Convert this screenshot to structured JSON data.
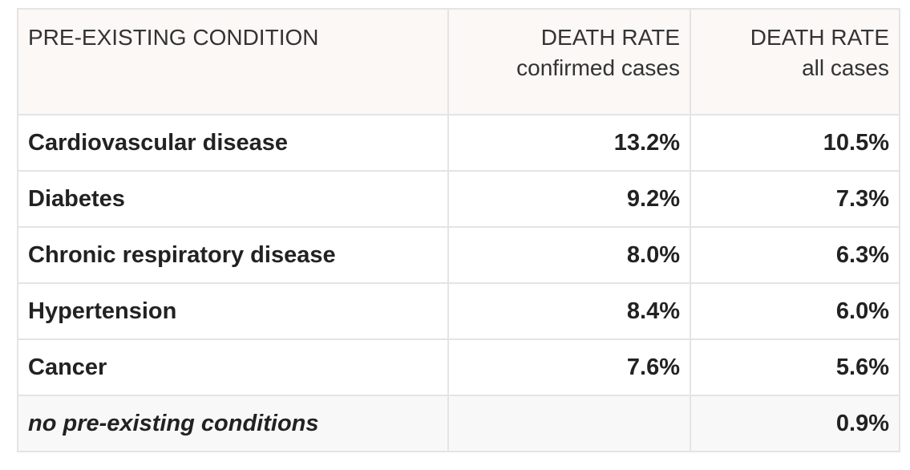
{
  "table": {
    "headers": [
      {
        "title": "PRE-EXISTING CONDITION",
        "subtitle": ""
      },
      {
        "title": "DEATH RATE",
        "subtitle": "confirmed cases"
      },
      {
        "title": "DEATH RATE",
        "subtitle": "all cases"
      }
    ],
    "rows": [
      {
        "condition": "Cardiovascular disease",
        "confirmed": "13.2%",
        "all": "10.5%"
      },
      {
        "condition": "Diabetes",
        "confirmed": "9.2%",
        "all": "7.3%"
      },
      {
        "condition": "Chronic respiratory disease",
        "confirmed": "8.0%",
        "all": "6.3%"
      },
      {
        "condition": "Hypertension",
        "confirmed": "8.4%",
        "all": "6.0%"
      },
      {
        "condition": "Cancer",
        "confirmed": "7.6%",
        "all": "5.6%"
      },
      {
        "condition": "no pre-existing conditions",
        "confirmed": "",
        "all": "0.9%"
      }
    ]
  }
}
